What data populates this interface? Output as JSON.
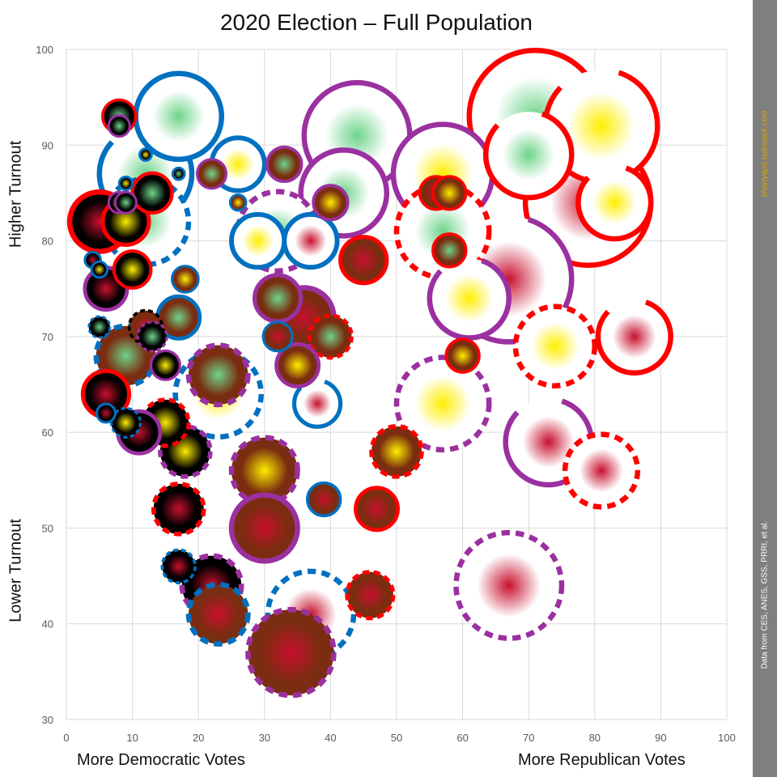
{
  "chart_data": {
    "type": "scatter",
    "title": "2020 Election – Full Population",
    "x_left_label": "More Democratic Votes",
    "x_right_label": "More Republican Votes",
    "y_top_label": "Higher Turnout",
    "y_bottom_label": "Lower Turnout",
    "xlim": [
      0,
      100
    ],
    "ylim": [
      30,
      100
    ],
    "x_ticks": [
      0,
      10,
      20,
      30,
      40,
      50,
      60,
      70,
      80,
      90,
      100
    ],
    "y_ticks": [
      30,
      40,
      50,
      60,
      70,
      80,
      90,
      100
    ],
    "grid": true,
    "credit": "chartyaps.substack.com",
    "source": "Data from CES, ANES, GSS, PRRI, et al.",
    "colors": {
      "ring_red": "#ff0000",
      "ring_blue": "#0070c0",
      "ring_purple": "#9b30a0",
      "ring_black": "#000000",
      "fill_green": "#6ed48a",
      "fill_yellow": "#ffee00",
      "fill_red": "#c8102e"
    },
    "points": [
      {
        "x": 71,
        "y": 93,
        "r": 10,
        "ring": "red",
        "dash": "solid",
        "fill": "green",
        "bg": "white"
      },
      {
        "x": 81,
        "y": 92,
        "r": 8.5,
        "ring": "red",
        "dash": "long",
        "fill": "yellow",
        "bg": "white"
      },
      {
        "x": 79,
        "y": 84,
        "r": 9.5,
        "ring": "red",
        "dash": "long",
        "fill": "red",
        "bg": "white"
      },
      {
        "x": 70,
        "y": 89,
        "r": 6.5,
        "ring": "red",
        "dash": "long",
        "fill": "green",
        "bg": "white"
      },
      {
        "x": 83,
        "y": 84,
        "r": 5.5,
        "ring": "red",
        "dash": "long",
        "fill": "yellow",
        "bg": "white"
      },
      {
        "x": 44,
        "y": 91,
        "r": 8,
        "ring": "purple",
        "dash": "solid",
        "fill": "green",
        "bg": "white"
      },
      {
        "x": 57,
        "y": 87,
        "r": 7.5,
        "ring": "purple",
        "dash": "solid",
        "fill": "yellow",
        "bg": "white"
      },
      {
        "x": 42,
        "y": 85,
        "r": 6.5,
        "ring": "purple",
        "dash": "solid",
        "fill": "green",
        "bg": "white"
      },
      {
        "x": 57,
        "y": 81,
        "r": 7,
        "ring": "red",
        "dash": "dashed",
        "fill": "green",
        "bg": "white"
      },
      {
        "x": 67,
        "y": 76,
        "r": 9.5,
        "ring": "purple",
        "dash": "long",
        "fill": "red",
        "bg": "white"
      },
      {
        "x": 61,
        "y": 74,
        "r": 6,
        "ring": "purple",
        "dash": "long",
        "fill": "yellow",
        "bg": "white"
      },
      {
        "x": 74,
        "y": 69,
        "r": 6,
        "ring": "red",
        "dash": "dashed",
        "fill": "yellow",
        "bg": "white"
      },
      {
        "x": 86,
        "y": 70,
        "r": 5.5,
        "ring": "red",
        "dash": "long",
        "fill": "red",
        "bg": "white"
      },
      {
        "x": 57,
        "y": 63,
        "r": 7,
        "ring": "purple",
        "dash": "dashed",
        "fill": "yellow",
        "bg": "white"
      },
      {
        "x": 73,
        "y": 59,
        "r": 6.5,
        "ring": "purple",
        "dash": "long",
        "fill": "red",
        "bg": "white"
      },
      {
        "x": 81,
        "y": 56,
        "r": 5.5,
        "ring": "red",
        "dash": "dashed",
        "fill": "red",
        "bg": "white"
      },
      {
        "x": 67,
        "y": 44,
        "r": 8,
        "ring": "purple",
        "dash": "dashed",
        "fill": "red",
        "bg": "white"
      },
      {
        "x": 17,
        "y": 93,
        "r": 6.5,
        "ring": "blue",
        "dash": "solid",
        "fill": "green",
        "bg": "white"
      },
      {
        "x": 12,
        "y": 87,
        "r": 7,
        "ring": "blue",
        "dash": "long",
        "fill": "green",
        "bg": "white"
      },
      {
        "x": 26,
        "y": 88,
        "r": 4,
        "ring": "blue",
        "dash": "solid",
        "fill": "yellow",
        "bg": "white"
      },
      {
        "x": 32,
        "y": 81,
        "r": 6,
        "ring": "purple",
        "dash": "dashed",
        "fill": "green",
        "bg": "white"
      },
      {
        "x": 29,
        "y": 80,
        "r": 4,
        "ring": "blue",
        "dash": "solid",
        "fill": "yellow",
        "bg": "white"
      },
      {
        "x": 37,
        "y": 80,
        "r": 4,
        "ring": "blue",
        "dash": "solid",
        "fill": "red",
        "bg": "white"
      },
      {
        "x": 12,
        "y": 82,
        "r": 6.5,
        "ring": "blue",
        "dash": "dashed",
        "fill": "green",
        "bg": "white"
      },
      {
        "x": 23,
        "y": 64,
        "r": 6.5,
        "ring": "blue",
        "dash": "dashed",
        "fill": "yellow",
        "bg": "white"
      },
      {
        "x": 38,
        "y": 63,
        "r": 3.5,
        "ring": "blue",
        "dash": "long",
        "fill": "red",
        "bg": "white"
      },
      {
        "x": 37,
        "y": 41,
        "r": 6.5,
        "ring": "blue",
        "dash": "dashed",
        "fill": "red",
        "bg": "white"
      },
      {
        "x": 8,
        "y": 93,
        "r": 2.5,
        "ring": "red",
        "dash": "solid",
        "fill": "green",
        "bg": "black"
      },
      {
        "x": 8,
        "y": 92,
        "r": 1.6,
        "ring": "purple",
        "dash": "solid",
        "fill": "green",
        "bg": "black"
      },
      {
        "x": 12,
        "y": 89,
        "r": 0.9,
        "ring": "blue",
        "dash": "solid",
        "fill": "yellow",
        "bg": "black"
      },
      {
        "x": 17,
        "y": 87,
        "r": 0.9,
        "ring": "blue",
        "dash": "solid",
        "fill": "green",
        "bg": "black"
      },
      {
        "x": 9,
        "y": 86,
        "r": 1,
        "ring": "blue",
        "dash": "solid",
        "fill": "yellow",
        "bg": "black"
      },
      {
        "x": 13,
        "y": 85,
        "r": 3,
        "ring": "red",
        "dash": "solid",
        "fill": "green",
        "bg": "black"
      },
      {
        "x": 8,
        "y": 84,
        "r": 1.6,
        "ring": "purple",
        "dash": "solid",
        "fill": "yellow",
        "bg": "black"
      },
      {
        "x": 9,
        "y": 84,
        "r": 1.6,
        "ring": "purple",
        "dash": "solid",
        "fill": "green",
        "bg": "black"
      },
      {
        "x": 5,
        "y": 82,
        "r": 4.5,
        "ring": "red",
        "dash": "solid",
        "fill": "red",
        "bg": "black"
      },
      {
        "x": 9,
        "y": 82,
        "r": 3.5,
        "ring": "red",
        "dash": "solid",
        "fill": "yellow",
        "bg": "black"
      },
      {
        "x": 4,
        "y": 78,
        "r": 1.2,
        "ring": "blue",
        "dash": "solid",
        "fill": "red",
        "bg": "black"
      },
      {
        "x": 5,
        "y": 77,
        "r": 1.2,
        "ring": "blue",
        "dash": "solid",
        "fill": "yellow",
        "bg": "black"
      },
      {
        "x": 10,
        "y": 77,
        "r": 2.8,
        "ring": "red",
        "dash": "solid",
        "fill": "yellow",
        "bg": "black"
      },
      {
        "x": 6,
        "y": 75,
        "r": 3.2,
        "ring": "purple",
        "dash": "solid",
        "fill": "red",
        "bg": "black"
      },
      {
        "x": 18,
        "y": 76,
        "r": 2,
        "ring": "blue",
        "dash": "solid",
        "fill": "yellow",
        "bg": "brown"
      },
      {
        "x": 17,
        "y": 72,
        "r": 3.2,
        "ring": "blue",
        "dash": "solid",
        "fill": "green",
        "bg": "brown"
      },
      {
        "x": 12,
        "y": 71,
        "r": 2.5,
        "ring": "black",
        "dash": "dashed",
        "fill": "red",
        "bg": "brown"
      },
      {
        "x": 13,
        "y": 70,
        "r": 2.2,
        "ring": "purple",
        "dash": "dashed",
        "fill": "green",
        "bg": "black"
      },
      {
        "x": 5,
        "y": 71,
        "r": 1.6,
        "ring": "blue",
        "dash": "dashed",
        "fill": "green",
        "bg": "black"
      },
      {
        "x": 9,
        "y": 68,
        "r": 4.5,
        "ring": "blue",
        "dash": "dashed",
        "fill": "green",
        "bg": "brown"
      },
      {
        "x": 15,
        "y": 67,
        "r": 2.2,
        "ring": "purple",
        "dash": "solid",
        "fill": "yellow",
        "bg": "black"
      },
      {
        "x": 6,
        "y": 64,
        "r": 3.5,
        "ring": "red",
        "dash": "solid",
        "fill": "red",
        "bg": "black"
      },
      {
        "x": 6,
        "y": 62,
        "r": 1.4,
        "ring": "blue",
        "dash": "solid",
        "fill": "red",
        "bg": "black"
      },
      {
        "x": 9,
        "y": 61,
        "r": 2.2,
        "ring": "blue",
        "dash": "dashed",
        "fill": "yellow",
        "bg": "black"
      },
      {
        "x": 11,
        "y": 60,
        "r": 3.2,
        "ring": "purple",
        "dash": "solid",
        "fill": "red",
        "bg": "black"
      },
      {
        "x": 15,
        "y": 61,
        "r": 3.5,
        "ring": "red",
        "dash": "dashed",
        "fill": "yellow",
        "bg": "black"
      },
      {
        "x": 18,
        "y": 58,
        "r": 3.8,
        "ring": "purple",
        "dash": "dashed",
        "fill": "yellow",
        "bg": "black"
      },
      {
        "x": 17,
        "y": 52,
        "r": 3.8,
        "ring": "red",
        "dash": "dashed",
        "fill": "red",
        "bg": "black"
      },
      {
        "x": 17,
        "y": 46,
        "r": 2.5,
        "ring": "blue",
        "dash": "dashed",
        "fill": "red",
        "bg": "black"
      },
      {
        "x": 22,
        "y": 44,
        "r": 4.5,
        "ring": "purple",
        "dash": "dashed",
        "fill": "red",
        "bg": "black"
      },
      {
        "x": 23,
        "y": 41,
        "r": 4.5,
        "ring": "blue",
        "dash": "dashed",
        "fill": "red",
        "bg": "brown"
      },
      {
        "x": 22,
        "y": 87,
        "r": 2.2,
        "ring": "purple",
        "dash": "solid",
        "fill": "green",
        "bg": "brown"
      },
      {
        "x": 26,
        "y": 84,
        "r": 1.2,
        "ring": "blue",
        "dash": "solid",
        "fill": "yellow",
        "bg": "brown"
      },
      {
        "x": 33,
        "y": 88,
        "r": 2.6,
        "ring": "purple",
        "dash": "solid",
        "fill": "green",
        "bg": "brown"
      },
      {
        "x": 40,
        "y": 84,
        "r": 2.6,
        "ring": "purple",
        "dash": "solid",
        "fill": "yellow",
        "bg": "brown"
      },
      {
        "x": 45,
        "y": 78,
        "r": 3.5,
        "ring": "red",
        "dash": "solid",
        "fill": "red",
        "bg": "brown"
      },
      {
        "x": 58,
        "y": 79,
        "r": 2.5,
        "ring": "red",
        "dash": "solid",
        "fill": "green",
        "bg": "brown"
      },
      {
        "x": 56,
        "y": 85,
        "r": 2.5,
        "ring": "red",
        "dash": "solid",
        "fill": "red",
        "bg": "brown"
      },
      {
        "x": 58,
        "y": 85,
        "r": 2.5,
        "ring": "red",
        "dash": "solid",
        "fill": "yellow",
        "bg": "brown"
      },
      {
        "x": 36,
        "y": 72,
        "r": 4.5,
        "ring": "purple",
        "dash": "solid",
        "fill": "red",
        "bg": "brown"
      },
      {
        "x": 32,
        "y": 74,
        "r": 3.5,
        "ring": "purple",
        "dash": "solid",
        "fill": "green",
        "bg": "brown"
      },
      {
        "x": 32,
        "y": 70,
        "r": 2.2,
        "ring": "blue",
        "dash": "solid",
        "fill": "red",
        "bg": "brown"
      },
      {
        "x": 40,
        "y": 70,
        "r": 3.2,
        "ring": "red",
        "dash": "dashed",
        "fill": "green",
        "bg": "brown"
      },
      {
        "x": 35,
        "y": 67,
        "r": 3.2,
        "ring": "purple",
        "dash": "solid",
        "fill": "yellow",
        "bg": "brown"
      },
      {
        "x": 23,
        "y": 66,
        "r": 4.5,
        "ring": "purple",
        "dash": "dashed",
        "fill": "green",
        "bg": "brown"
      },
      {
        "x": 60,
        "y": 68,
        "r": 2.5,
        "ring": "red",
        "dash": "solid",
        "fill": "yellow",
        "bg": "brown"
      },
      {
        "x": 50,
        "y": 58,
        "r": 3.8,
        "ring": "red",
        "dash": "dashed",
        "fill": "yellow",
        "bg": "brown"
      },
      {
        "x": 30,
        "y": 56,
        "r": 5,
        "ring": "purple",
        "dash": "dashed",
        "fill": "yellow",
        "bg": "brown"
      },
      {
        "x": 39,
        "y": 53,
        "r": 2.5,
        "ring": "blue",
        "dash": "solid",
        "fill": "red",
        "bg": "brown"
      },
      {
        "x": 47,
        "y": 52,
        "r": 3.2,
        "ring": "red",
        "dash": "solid",
        "fill": "red",
        "bg": "brown"
      },
      {
        "x": 30,
        "y": 50,
        "r": 5,
        "ring": "purple",
        "dash": "solid",
        "fill": "red",
        "bg": "brown"
      },
      {
        "x": 46,
        "y": 43,
        "r": 3.5,
        "ring": "red",
        "dash": "dashed",
        "fill": "red",
        "bg": "brown"
      },
      {
        "x": 34,
        "y": 37,
        "r": 6.5,
        "ring": "purple",
        "dash": "dashed",
        "fill": "red",
        "bg": "brown"
      }
    ]
  }
}
